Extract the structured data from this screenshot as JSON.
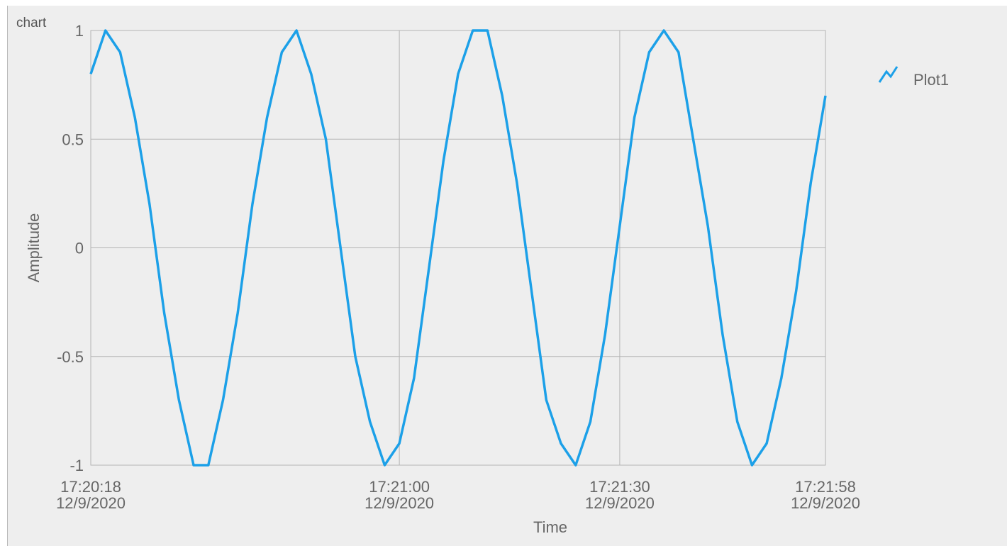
{
  "chart_label": "chart",
  "chart_data": {
    "type": "line",
    "xlabel": "Time",
    "ylabel": "Amplitude",
    "ylim": [
      -1,
      1
    ],
    "grid": true,
    "legend_position": "top-right",
    "x_ticks": [
      {
        "time": "17:20:18",
        "date": "12/9/2020",
        "seconds": 0
      },
      {
        "time": "17:21:00",
        "date": "12/9/2020",
        "seconds": 42
      },
      {
        "time": "17:21:30",
        "date": "12/9/2020",
        "seconds": 72
      },
      {
        "time": "17:21:58",
        "date": "12/9/2020",
        "seconds": 100
      }
    ],
    "y_ticks": [
      1,
      0.5,
      0,
      -0.5,
      -1
    ],
    "x_range_seconds": [
      0,
      100
    ],
    "series": [
      {
        "name": "Plot1",
        "color": "#1ca0e8",
        "x_seconds": [
          0,
          2,
          4,
          6,
          8,
          10,
          12,
          14,
          16,
          18,
          20,
          22,
          24,
          26,
          28,
          30,
          32,
          34,
          36,
          38,
          40,
          42,
          44,
          46,
          48,
          50,
          52,
          54,
          56,
          58,
          60,
          62,
          64,
          66,
          68,
          70,
          72,
          74,
          76,
          78,
          80,
          82,
          84,
          86,
          88,
          90,
          92,
          94,
          96,
          98,
          100
        ],
        "y": [
          0.8,
          1.0,
          0.9,
          0.6,
          0.2,
          -0.3,
          -0.7,
          -1.0,
          -1.0,
          -0.7,
          -0.3,
          0.2,
          0.6,
          0.9,
          1.0,
          0.8,
          0.5,
          0.0,
          -0.5,
          -0.8,
          -1.0,
          -0.9,
          -0.6,
          -0.1,
          0.4,
          0.8,
          1.0,
          1.0,
          0.7,
          0.3,
          -0.2,
          -0.7,
          -0.9,
          -1.0,
          -0.8,
          -0.4,
          0.1,
          0.6,
          0.9,
          1.0,
          0.9,
          0.5,
          0.1,
          -0.4,
          -0.8,
          -1.0,
          -0.9,
          -0.6,
          -0.2,
          0.3,
          0.7
        ]
      }
    ]
  }
}
